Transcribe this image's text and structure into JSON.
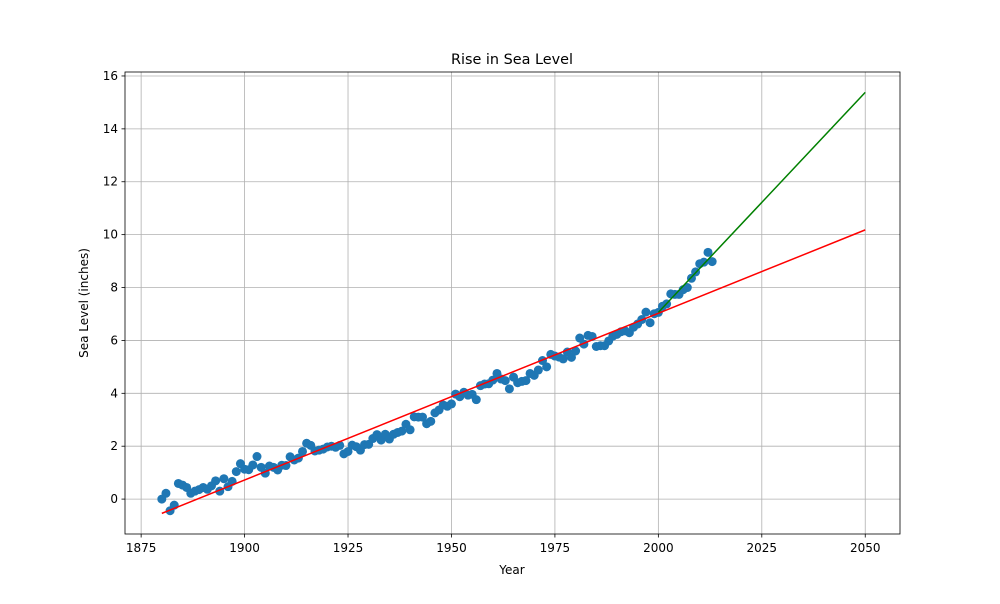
{
  "chart_data": {
    "type": "scatter",
    "title": "Rise in Sea Level",
    "xlabel": "Year",
    "ylabel": "Sea Level (inches)",
    "x": [
      1880,
      1881,
      1882,
      1883,
      1884,
      1885,
      1886,
      1887,
      1888,
      1889,
      1890,
      1891,
      1892,
      1893,
      1894,
      1895,
      1896,
      1897,
      1898,
      1899,
      1900,
      1901,
      1902,
      1903,
      1904,
      1905,
      1906,
      1907,
      1908,
      1909,
      1910,
      1911,
      1912,
      1913,
      1914,
      1915,
      1916,
      1917,
      1918,
      1919,
      1920,
      1921,
      1922,
      1923,
      1924,
      1925,
      1926,
      1927,
      1928,
      1929,
      1930,
      1931,
      1932,
      1933,
      1934,
      1935,
      1936,
      1937,
      1938,
      1939,
      1940,
      1941,
      1942,
      1943,
      1944,
      1945,
      1946,
      1947,
      1948,
      1949,
      1950,
      1951,
      1952,
      1953,
      1954,
      1955,
      1956,
      1957,
      1958,
      1959,
      1960,
      1961,
      1962,
      1963,
      1964,
      1965,
      1966,
      1967,
      1968,
      1969,
      1970,
      1971,
      1972,
      1973,
      1974,
      1975,
      1976,
      1977,
      1978,
      1979,
      1980,
      1981,
      1982,
      1983,
      1984,
      1985,
      1986,
      1987,
      1988,
      1989,
      1990,
      1991,
      1992,
      1993,
      1994,
      1995,
      1996,
      1997,
      1998,
      1999,
      2000,
      2001,
      2002,
      2003,
      2004,
      2005,
      2006,
      2007,
      2008,
      2009,
      2010,
      2011,
      2012,
      2013
    ],
    "values": [
      0.0,
      0.22,
      -0.44,
      -0.23,
      0.59,
      0.53,
      0.44,
      0.22,
      0.3,
      0.36,
      0.44,
      0.37,
      0.5,
      0.69,
      0.3,
      0.77,
      0.47,
      0.67,
      1.04,
      1.34,
      1.13,
      1.11,
      1.29,
      1.61,
      1.2,
      0.98,
      1.25,
      1.2,
      1.1,
      1.28,
      1.27,
      1.6,
      1.48,
      1.55,
      1.8,
      2.11,
      2.03,
      1.82,
      1.85,
      1.89,
      1.97,
      2.0,
      1.96,
      2.03,
      1.71,
      1.8,
      2.04,
      1.98,
      1.85,
      2.06,
      2.07,
      2.29,
      2.44,
      2.23,
      2.45,
      2.27,
      2.45,
      2.52,
      2.57,
      2.83,
      2.62,
      3.11,
      3.1,
      3.1,
      2.85,
      2.94,
      3.26,
      3.37,
      3.56,
      3.51,
      3.6,
      3.97,
      3.87,
      4.04,
      3.93,
      3.96,
      3.76,
      4.29,
      4.35,
      4.36,
      4.5,
      4.75,
      4.54,
      4.48,
      4.17,
      4.61,
      4.4,
      4.45,
      4.48,
      4.75,
      4.68,
      4.88,
      5.24,
      5.0,
      5.47,
      5.41,
      5.37,
      5.3,
      5.56,
      5.36,
      5.6,
      6.09,
      5.86,
      6.19,
      6.15,
      5.77,
      5.8,
      5.8,
      5.98,
      6.16,
      6.23,
      6.33,
      6.36,
      6.29,
      6.5,
      6.62,
      6.79,
      7.07,
      6.67,
      7.01,
      7.06,
      7.29,
      7.38,
      7.76,
      7.74,
      7.74,
      7.92,
      8.0,
      8.35,
      8.59,
      8.9,
      8.96,
      9.33,
      8.98
    ],
    "color": "#1f77b4",
    "lines": [
      {
        "color": "#ff0000",
        "x": [
          1880,
          2050
        ],
        "values": [
          -0.54,
          10.18
        ]
      },
      {
        "color": "#008000",
        "x": [
          2000,
          2050
        ],
        "values": [
          7.06,
          15.38
        ]
      }
    ],
    "xlim": [
      1871.1,
      2058.4
    ],
    "xticks": [
      1875,
      1900,
      1925,
      1950,
      1975,
      2000,
      2025,
      2050
    ],
    "ylim": [
      -1.32,
      16.15
    ],
    "yticks": [
      0,
      2,
      4,
      6,
      8,
      10,
      12,
      14,
      16
    ],
    "grid": true
  }
}
